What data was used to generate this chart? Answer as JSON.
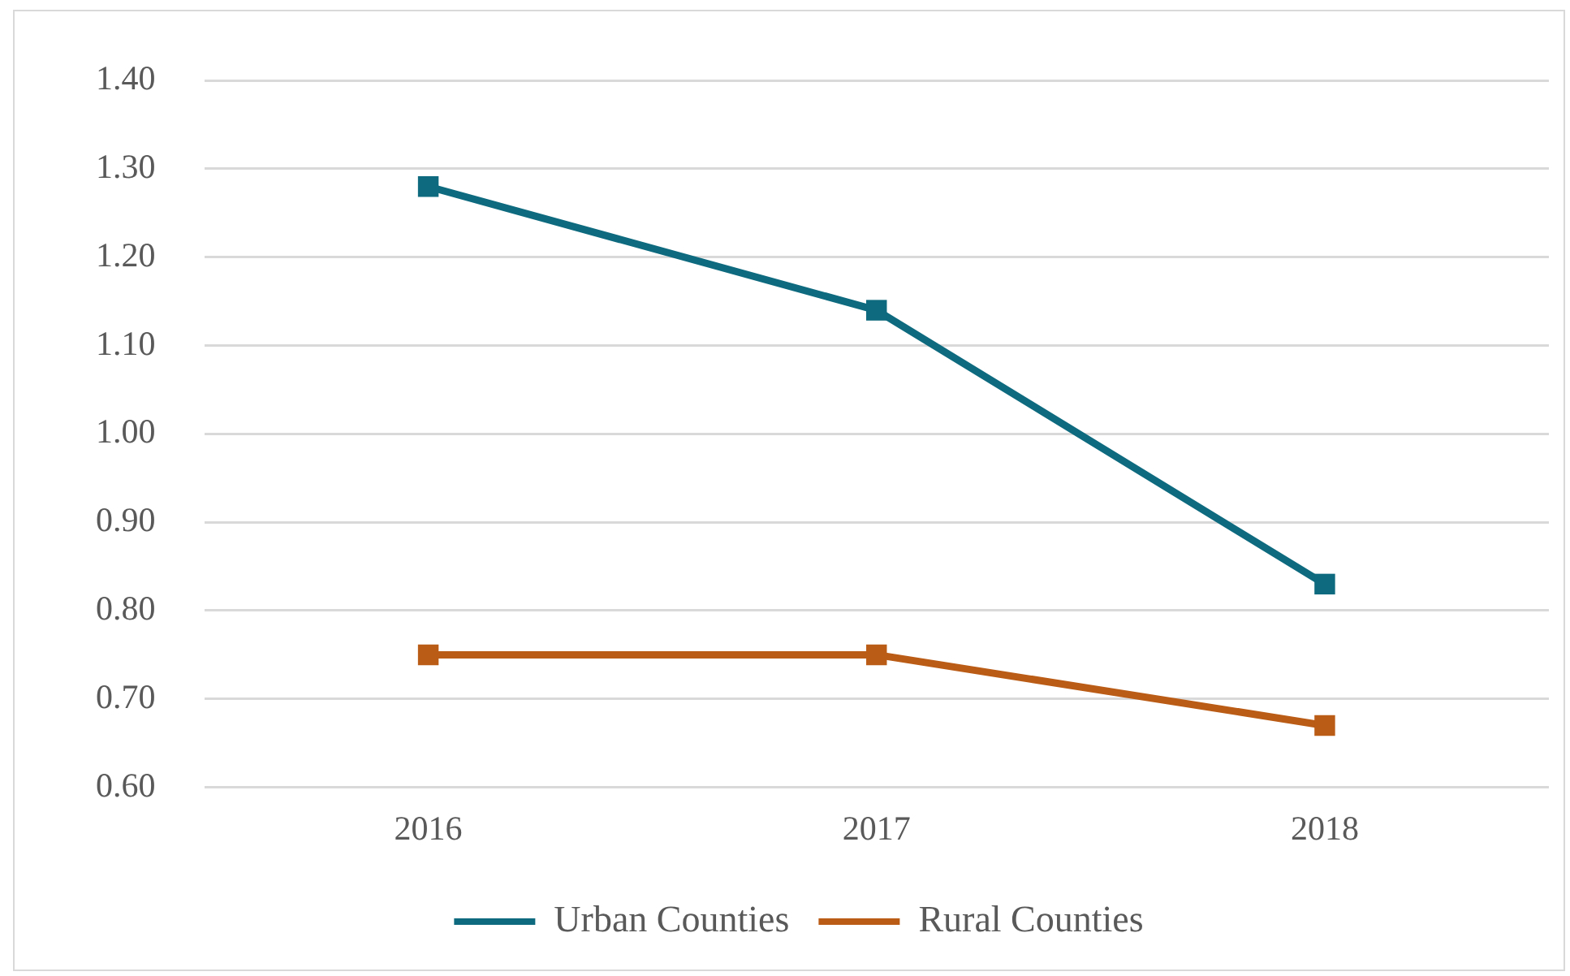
{
  "chart_data": {
    "type": "line",
    "categories": [
      "2016",
      "2017",
      "2018"
    ],
    "series": [
      {
        "name": "Urban Counties",
        "color": "#0e6a7e",
        "values": [
          1.28,
          1.14,
          0.83
        ]
      },
      {
        "name": "Rural Counties",
        "color": "#bb5c16",
        "values": [
          0.75,
          0.75,
          0.67
        ]
      }
    ],
    "ylim": [
      0.6,
      1.4
    ],
    "yticks": [
      {
        "value": 0.6,
        "label": "0.60"
      },
      {
        "value": 0.7,
        "label": "0.70"
      },
      {
        "value": 0.8,
        "label": "0.80"
      },
      {
        "value": 0.9,
        "label": "0.90"
      },
      {
        "value": 1.0,
        "label": "1.00"
      },
      {
        "value": 1.1,
        "label": "1.10"
      },
      {
        "value": 1.2,
        "label": "1.20"
      },
      {
        "value": 1.3,
        "label": "1.30"
      },
      {
        "value": 1.4,
        "label": "1.40"
      }
    ],
    "grid": "y",
    "legend": "bottom",
    "marker": "square",
    "line_style": "solid"
  }
}
